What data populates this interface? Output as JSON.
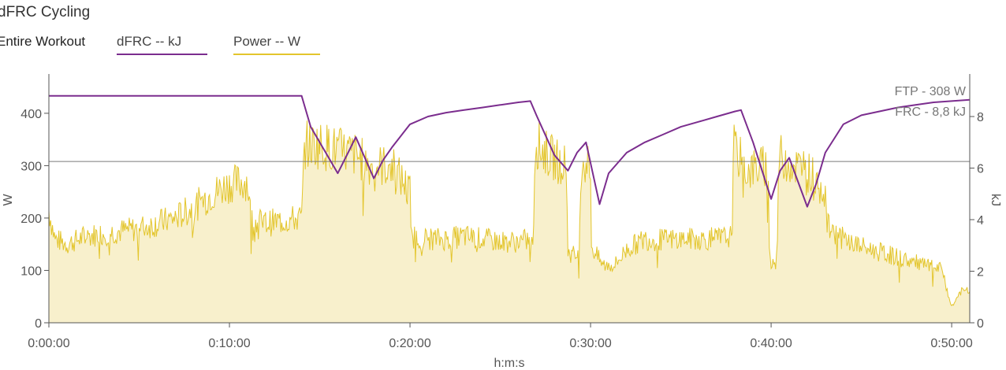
{
  "title": "dFRC Cycling",
  "range_label": "Entire Workout",
  "legend": [
    {
      "label": "dFRC  -- kJ",
      "color": "#7b2d8e"
    },
    {
      "label": "Power  -- W",
      "color": "#e3c52c"
    }
  ],
  "colors": {
    "power_line": "#e3c52c",
    "power_fill": "#f8f0cc",
    "dfrc_line": "#7b2d8e",
    "ftp_line": "#7a7a7a",
    "axis": "#555555",
    "text": "#555555"
  },
  "chart_data": {
    "type": "area",
    "xlabel": "h:m:s",
    "ylabel_left": "W",
    "ylabel_right": "kJ",
    "x_range_seconds": [
      0,
      3060
    ],
    "xticks": [
      0,
      600,
      1200,
      1800,
      2400,
      3000
    ],
    "xtick_labels": [
      "0:00:00",
      "0:10:00",
      "0:20:00",
      "0:30:00",
      "0:40:00",
      "0:50:00"
    ],
    "ylim_left": [
      0,
      475
    ],
    "yticks_left": [
      0,
      100,
      200,
      300,
      400
    ],
    "ylim_right": [
      0,
      9.65
    ],
    "yticks_right": [
      0,
      2,
      4,
      6,
      8
    ],
    "annotations": [
      {
        "label": "FTP - 308 W",
        "value": 308,
        "axis": "left"
      },
      {
        "label": "FRC - 8,8 kJ",
        "value": 8.8,
        "axis": "right"
      }
    ],
    "series": [
      {
        "name": "Power",
        "axis": "left",
        "note": "noisy signal; [time_s, watts] anchor points",
        "points": [
          [
            0,
            215
          ],
          [
            20,
            160
          ],
          [
            60,
            150
          ],
          [
            120,
            165
          ],
          [
            180,
            170
          ],
          [
            240,
            175
          ],
          [
            300,
            180
          ],
          [
            360,
            190
          ],
          [
            420,
            200
          ],
          [
            480,
            220
          ],
          [
            540,
            245
          ],
          [
            600,
            265
          ],
          [
            660,
            270
          ],
          [
            672,
            195
          ],
          [
            720,
            190
          ],
          [
            780,
            195
          ],
          [
            840,
            200
          ],
          [
            850,
            340
          ],
          [
            900,
            340
          ],
          [
            960,
            330
          ],
          [
            1020,
            320
          ],
          [
            1070,
            300
          ],
          [
            1140,
            300
          ],
          [
            1200,
            250
          ],
          [
            1203,
            165
          ],
          [
            1260,
            160
          ],
          [
            1320,
            160
          ],
          [
            1380,
            165
          ],
          [
            1440,
            160
          ],
          [
            1500,
            155
          ],
          [
            1560,
            155
          ],
          [
            1610,
            160
          ],
          [
            1615,
            345
          ],
          [
            1660,
            320
          ],
          [
            1700,
            305
          ],
          [
            1720,
            300
          ],
          [
            1725,
            135
          ],
          [
            1760,
            125
          ],
          [
            1770,
            310
          ],
          [
            1800,
            300
          ],
          [
            1803,
            145
          ],
          [
            1840,
            110
          ],
          [
            1880,
            110
          ],
          [
            1920,
            140
          ],
          [
            1980,
            160
          ],
          [
            2040,
            158
          ],
          [
            2100,
            160
          ],
          [
            2160,
            160
          ],
          [
            2220,
            160
          ],
          [
            2270,
            165
          ],
          [
            2275,
            335
          ],
          [
            2320,
            290
          ],
          [
            2380,
            300
          ],
          [
            2390,
            290
          ],
          [
            2395,
            120
          ],
          [
            2420,
            115
          ],
          [
            2425,
            320
          ],
          [
            2480,
            300
          ],
          [
            2520,
            290
          ],
          [
            2560,
            270
          ],
          [
            2580,
            250
          ],
          [
            2585,
            185
          ],
          [
            2640,
            160
          ],
          [
            2700,
            145
          ],
          [
            2760,
            135
          ],
          [
            2820,
            125
          ],
          [
            2880,
            115
          ],
          [
            2940,
            105
          ],
          [
            2970,
            100
          ],
          [
            2990,
            50
          ],
          [
            3000,
            30
          ],
          [
            3030,
            60
          ],
          [
            3060,
            60
          ]
        ]
      },
      {
        "name": "dFRC",
        "axis": "right",
        "points": [
          [
            0,
            8.8
          ],
          [
            840,
            8.8
          ],
          [
            870,
            7.6
          ],
          [
            900,
            7.0
          ],
          [
            960,
            5.8
          ],
          [
            990,
            6.5
          ],
          [
            1020,
            7.2
          ],
          [
            1080,
            5.6
          ],
          [
            1110,
            6.3
          ],
          [
            1140,
            6.8
          ],
          [
            1200,
            7.7
          ],
          [
            1260,
            8.0
          ],
          [
            1320,
            8.15
          ],
          [
            1380,
            8.25
          ],
          [
            1440,
            8.35
          ],
          [
            1500,
            8.45
          ],
          [
            1560,
            8.55
          ],
          [
            1600,
            8.6
          ],
          [
            1620,
            8.05
          ],
          [
            1680,
            6.5
          ],
          [
            1725,
            5.9
          ],
          [
            1755,
            6.6
          ],
          [
            1785,
            7.0
          ],
          [
            1830,
            4.6
          ],
          [
            1860,
            5.8
          ],
          [
            1920,
            6.6
          ],
          [
            1980,
            7.0
          ],
          [
            2040,
            7.3
          ],
          [
            2100,
            7.6
          ],
          [
            2160,
            7.8
          ],
          [
            2220,
            8.0
          ],
          [
            2280,
            8.2
          ],
          [
            2300,
            8.25
          ],
          [
            2340,
            7.0
          ],
          [
            2400,
            4.8
          ],
          [
            2430,
            5.9
          ],
          [
            2460,
            6.4
          ],
          [
            2520,
            4.5
          ],
          [
            2550,
            5.4
          ],
          [
            2580,
            6.6
          ],
          [
            2640,
            7.7
          ],
          [
            2700,
            8.05
          ],
          [
            2760,
            8.2
          ],
          [
            2820,
            8.35
          ],
          [
            2880,
            8.45
          ],
          [
            2940,
            8.55
          ],
          [
            3000,
            8.6
          ],
          [
            3060,
            8.65
          ]
        ]
      }
    ]
  }
}
